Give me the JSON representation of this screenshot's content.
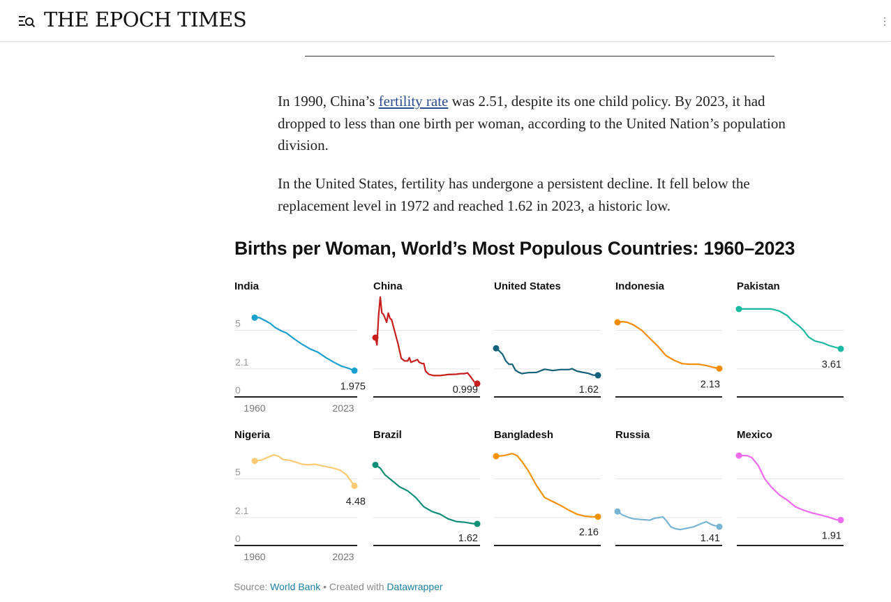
{
  "header": {
    "logo": "THE EPOCH TIMES",
    "menu_icon": "menu-search-icon"
  },
  "article": {
    "p1_before": "In 1990, China’s ",
    "p1_link": "fertility rate",
    "p1_after": " was 2.51, despite its one child policy. By 2023, it had dropped to less than one birth per woman, according to the United Nation’s population division.",
    "p2": "In the United States, fertility has undergone a persistent decline. It fell below the replacement level in 1972 and reached 1.62 in 2023, a historic low."
  },
  "chart_data": {
    "type": "line",
    "title": "Births per Woman, World’s Most Populous Countries: 1960–2023",
    "y_ticks": [
      "5",
      "2.1",
      "0"
    ],
    "y_tick_values": [
      5,
      2.1,
      0
    ],
    "x_ticks": [
      "1960",
      "2023"
    ],
    "ylim": [
      0,
      8
    ],
    "xlim": [
      1960,
      2023
    ],
    "series": [
      {
        "name": "India",
        "color": "#1aa0cf",
        "end_label": "1.975",
        "points": [
          [
            1960,
            5.95
          ],
          [
            1963,
            5.95
          ],
          [
            1967,
            5.7
          ],
          [
            1970,
            5.5
          ],
          [
            1973,
            5.2
          ],
          [
            1977,
            4.95
          ],
          [
            1980,
            4.8
          ],
          [
            1985,
            4.35
          ],
          [
            1990,
            3.95
          ],
          [
            1995,
            3.6
          ],
          [
            2000,
            3.35
          ],
          [
            2005,
            2.95
          ],
          [
            2010,
            2.6
          ],
          [
            2015,
            2.3
          ],
          [
            2018,
            2.2
          ],
          [
            2023,
            1.975
          ]
        ]
      },
      {
        "name": "China",
        "color": "#c71e1d",
        "end_label": "0.999",
        "points": [
          [
            1960,
            4.45
          ],
          [
            1961,
            3.9
          ],
          [
            1962,
            6.1
          ],
          [
            1963,
            7.5
          ],
          [
            1964,
            6.3
          ],
          [
            1965,
            6.2
          ],
          [
            1967,
            5.6
          ],
          [
            1968,
            6.3
          ],
          [
            1969,
            5.9
          ],
          [
            1970,
            5.8
          ],
          [
            1972,
            4.9
          ],
          [
            1974,
            4.0
          ],
          [
            1976,
            2.9
          ],
          [
            1978,
            2.7
          ],
          [
            1980,
            2.7
          ],
          [
            1981,
            2.95
          ],
          [
            1982,
            2.6
          ],
          [
            1984,
            2.7
          ],
          [
            1986,
            2.8
          ],
          [
            1987,
            2.6
          ],
          [
            1989,
            2.5
          ],
          [
            1990,
            2.51
          ],
          [
            1991,
            1.95
          ],
          [
            1993,
            1.7
          ],
          [
            1996,
            1.6
          ],
          [
            2000,
            1.6
          ],
          [
            2005,
            1.68
          ],
          [
            2010,
            1.7
          ],
          [
            2013,
            1.75
          ],
          [
            2015,
            1.75
          ],
          [
            2017,
            1.8
          ],
          [
            2019,
            1.5
          ],
          [
            2021,
            1.15
          ],
          [
            2023,
            0.999
          ]
        ]
      },
      {
        "name": "United States",
        "color": "#15607a",
        "end_label": "1.62",
        "points": [
          [
            1960,
            3.65
          ],
          [
            1962,
            3.45
          ],
          [
            1964,
            3.2
          ],
          [
            1966,
            2.7
          ],
          [
            1968,
            2.45
          ],
          [
            1970,
            2.45
          ],
          [
            1972,
            2.0
          ],
          [
            1974,
            1.85
          ],
          [
            1976,
            1.75
          ],
          [
            1980,
            1.82
          ],
          [
            1985,
            1.84
          ],
          [
            1990,
            2.08
          ],
          [
            1995,
            1.98
          ],
          [
            2000,
            2.05
          ],
          [
            2005,
            2.05
          ],
          [
            2007,
            2.12
          ],
          [
            2010,
            1.93
          ],
          [
            2013,
            1.86
          ],
          [
            2017,
            1.77
          ],
          [
            2020,
            1.64
          ],
          [
            2023,
            1.62
          ]
        ]
      },
      {
        "name": "Indonesia",
        "color": "#f58b00",
        "end_label": "2.13",
        "points": [
          [
            1960,
            5.6
          ],
          [
            1963,
            5.65
          ],
          [
            1966,
            5.6
          ],
          [
            1970,
            5.4
          ],
          [
            1975,
            5.0
          ],
          [
            1980,
            4.4
          ],
          [
            1985,
            3.8
          ],
          [
            1990,
            3.1
          ],
          [
            1995,
            2.75
          ],
          [
            2000,
            2.5
          ],
          [
            2005,
            2.45
          ],
          [
            2010,
            2.45
          ],
          [
            2015,
            2.35
          ],
          [
            2020,
            2.2
          ],
          [
            2023,
            2.13
          ]
        ]
      },
      {
        "name": "Pakistan",
        "color": "#19b8a1",
        "end_label": "3.61",
        "points": [
          [
            1960,
            6.6
          ],
          [
            1970,
            6.6
          ],
          [
            1980,
            6.6
          ],
          [
            1985,
            6.45
          ],
          [
            1990,
            6.1
          ],
          [
            1993,
            5.7
          ],
          [
            1997,
            5.35
          ],
          [
            2000,
            5.0
          ],
          [
            2003,
            4.5
          ],
          [
            2007,
            4.2
          ],
          [
            2012,
            4.05
          ],
          [
            2016,
            3.85
          ],
          [
            2023,
            3.61
          ]
        ]
      },
      {
        "name": "Nigeria",
        "color": "#fcca73",
        "end_label": "4.48",
        "points": [
          [
            1960,
            6.35
          ],
          [
            1964,
            6.4
          ],
          [
            1968,
            6.6
          ],
          [
            1972,
            6.8
          ],
          [
            1975,
            6.7
          ],
          [
            1978,
            6.45
          ],
          [
            1982,
            6.4
          ],
          [
            1986,
            6.25
          ],
          [
            1990,
            6.1
          ],
          [
            1994,
            6.05
          ],
          [
            1998,
            6.1
          ],
          [
            2002,
            6.0
          ],
          [
            2006,
            5.9
          ],
          [
            2010,
            5.8
          ],
          [
            2014,
            5.65
          ],
          [
            2018,
            5.3
          ],
          [
            2021,
            4.8
          ],
          [
            2023,
            4.48
          ]
        ]
      },
      {
        "name": "Brazil",
        "color": "#0f9075",
        "end_label": "1.62",
        "points": [
          [
            1960,
            6.05
          ],
          [
            1963,
            5.8
          ],
          [
            1966,
            5.3
          ],
          [
            1970,
            4.9
          ],
          [
            1975,
            4.4
          ],
          [
            1980,
            4.1
          ],
          [
            1985,
            3.6
          ],
          [
            1990,
            2.9
          ],
          [
            1995,
            2.55
          ],
          [
            2000,
            2.35
          ],
          [
            2005,
            2.0
          ],
          [
            2010,
            1.8
          ],
          [
            2015,
            1.75
          ],
          [
            2020,
            1.65
          ],
          [
            2023,
            1.62
          ]
        ]
      },
      {
        "name": "Bangladesh",
        "color": "#f39200",
        "end_label": "2.16",
        "points": [
          [
            1960,
            6.7
          ],
          [
            1965,
            6.75
          ],
          [
            1970,
            6.9
          ],
          [
            1973,
            6.75
          ],
          [
            1976,
            6.3
          ],
          [
            1980,
            5.6
          ],
          [
            1985,
            4.5
          ],
          [
            1990,
            3.6
          ],
          [
            1995,
            3.3
          ],
          [
            2000,
            3.0
          ],
          [
            2005,
            2.65
          ],
          [
            2010,
            2.35
          ],
          [
            2015,
            2.2
          ],
          [
            2020,
            2.15
          ],
          [
            2023,
            2.16
          ]
        ]
      },
      {
        "name": "Russia",
        "color": "#78b4d4",
        "end_label": "1.41",
        "points": [
          [
            1960,
            2.55
          ],
          [
            1963,
            2.3
          ],
          [
            1967,
            2.1
          ],
          [
            1970,
            2.0
          ],
          [
            1975,
            1.95
          ],
          [
            1980,
            1.9
          ],
          [
            1983,
            2.05
          ],
          [
            1986,
            2.1
          ],
          [
            1988,
            2.15
          ],
          [
            1990,
            1.9
          ],
          [
            1993,
            1.4
          ],
          [
            1996,
            1.25
          ],
          [
            1999,
            1.2
          ],
          [
            2003,
            1.3
          ],
          [
            2007,
            1.4
          ],
          [
            2010,
            1.55
          ],
          [
            2013,
            1.7
          ],
          [
            2015,
            1.78
          ],
          [
            2018,
            1.58
          ],
          [
            2020,
            1.5
          ],
          [
            2023,
            1.41
          ]
        ]
      },
      {
        "name": "Mexico",
        "color": "#ee6aee",
        "end_label": "1.91",
        "points": [
          [
            1960,
            6.75
          ],
          [
            1965,
            6.75
          ],
          [
            1968,
            6.6
          ],
          [
            1972,
            6.0
          ],
          [
            1976,
            5.0
          ],
          [
            1980,
            4.4
          ],
          [
            1985,
            3.8
          ],
          [
            1990,
            3.4
          ],
          [
            1995,
            2.9
          ],
          [
            2000,
            2.65
          ],
          [
            2005,
            2.45
          ],
          [
            2010,
            2.3
          ],
          [
            2015,
            2.15
          ],
          [
            2020,
            1.95
          ],
          [
            2023,
            1.91
          ]
        ]
      }
    ]
  },
  "source": {
    "label": "Source: ",
    "source_link": "World Bank",
    "separator": " • Created with ",
    "tool_link": "Datawrapper"
  }
}
